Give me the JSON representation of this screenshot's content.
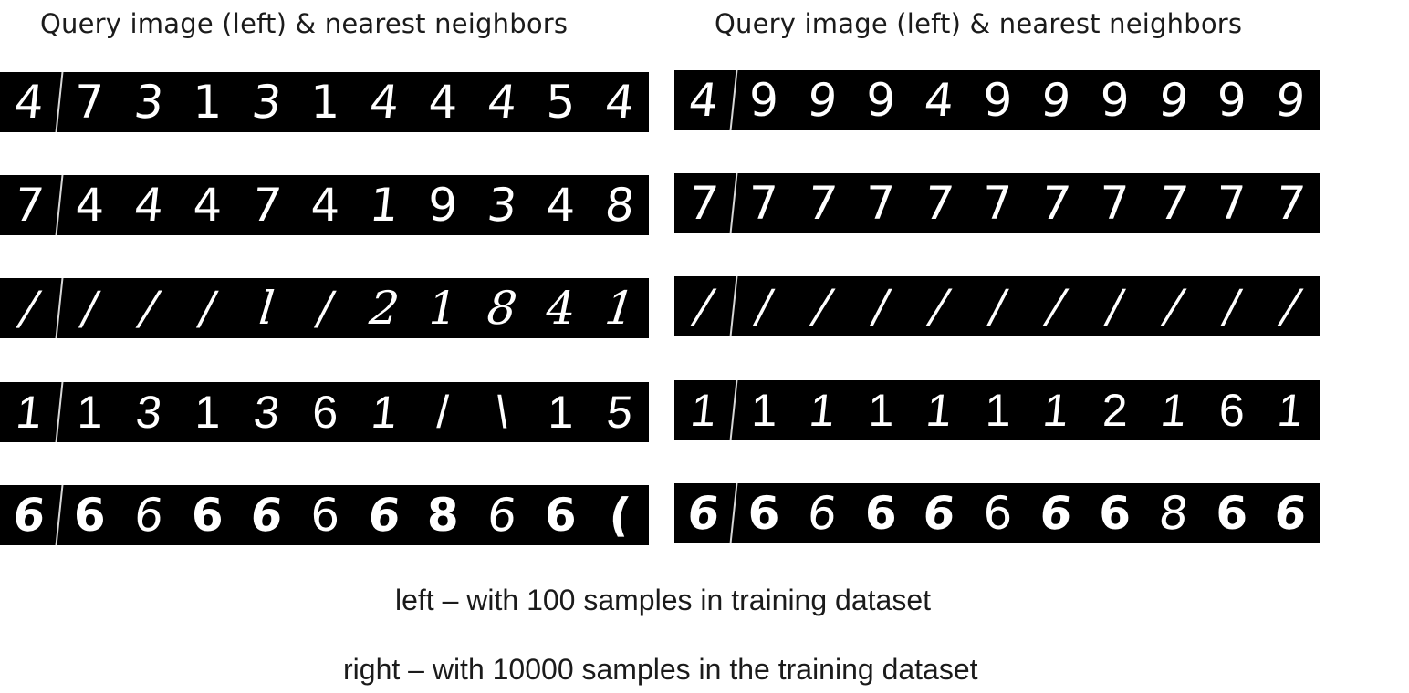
{
  "panels": [
    {
      "title": "Query image (left) & nearest neighbors",
      "rows": [
        {
          "query": "4",
          "neighbors": [
            "7",
            "3",
            "1",
            "3",
            "1",
            "4",
            "4",
            "4",
            "5",
            "4"
          ]
        },
        {
          "query": "7",
          "neighbors": [
            "4",
            "4",
            "4",
            "7",
            "4",
            "1",
            "9",
            "3",
            "4",
            "8"
          ]
        },
        {
          "query": "/",
          "neighbors": [
            "/",
            "/",
            "/",
            "l",
            "/",
            "2",
            "1",
            "8",
            "4",
            "1"
          ]
        },
        {
          "query": "1",
          "neighbors": [
            "1",
            "3",
            "1",
            "3",
            "6",
            "1",
            "/",
            "\\",
            "1",
            "5"
          ]
        },
        {
          "query": "6",
          "neighbors": [
            "6",
            "6",
            "6",
            "6",
            "6",
            "6",
            "8",
            "6",
            "6",
            "("
          ]
        }
      ]
    },
    {
      "title": "Query image (left) & nearest neighbors",
      "rows": [
        {
          "query": "4",
          "neighbors": [
            "9",
            "9",
            "9",
            "4",
            "9",
            "9",
            "9",
            "9",
            "9",
            "9"
          ]
        },
        {
          "query": "7",
          "neighbors": [
            "7",
            "7",
            "7",
            "7",
            "7",
            "7",
            "7",
            "7",
            "7",
            "7"
          ]
        },
        {
          "query": "/",
          "neighbors": [
            "/",
            "/",
            "/",
            "/",
            "/",
            "/",
            "/",
            "/",
            "/",
            "/"
          ]
        },
        {
          "query": "1",
          "neighbors": [
            "1",
            "1",
            "1",
            "1",
            "1",
            "1",
            "2",
            "1",
            "6",
            "1"
          ]
        },
        {
          "query": "6",
          "neighbors": [
            "6",
            "6",
            "6",
            "6",
            "6",
            "6",
            "6",
            "8",
            "6",
            "6"
          ]
        }
      ]
    }
  ],
  "captions": {
    "left": "left – with 100 samples in training dataset",
    "right": "right – with 10000 samples in the training dataset"
  },
  "colors": {
    "strip_background": "#000000",
    "digit": "#ffffff",
    "separator": "#d8d8d8",
    "text": "#1b1b1b"
  }
}
